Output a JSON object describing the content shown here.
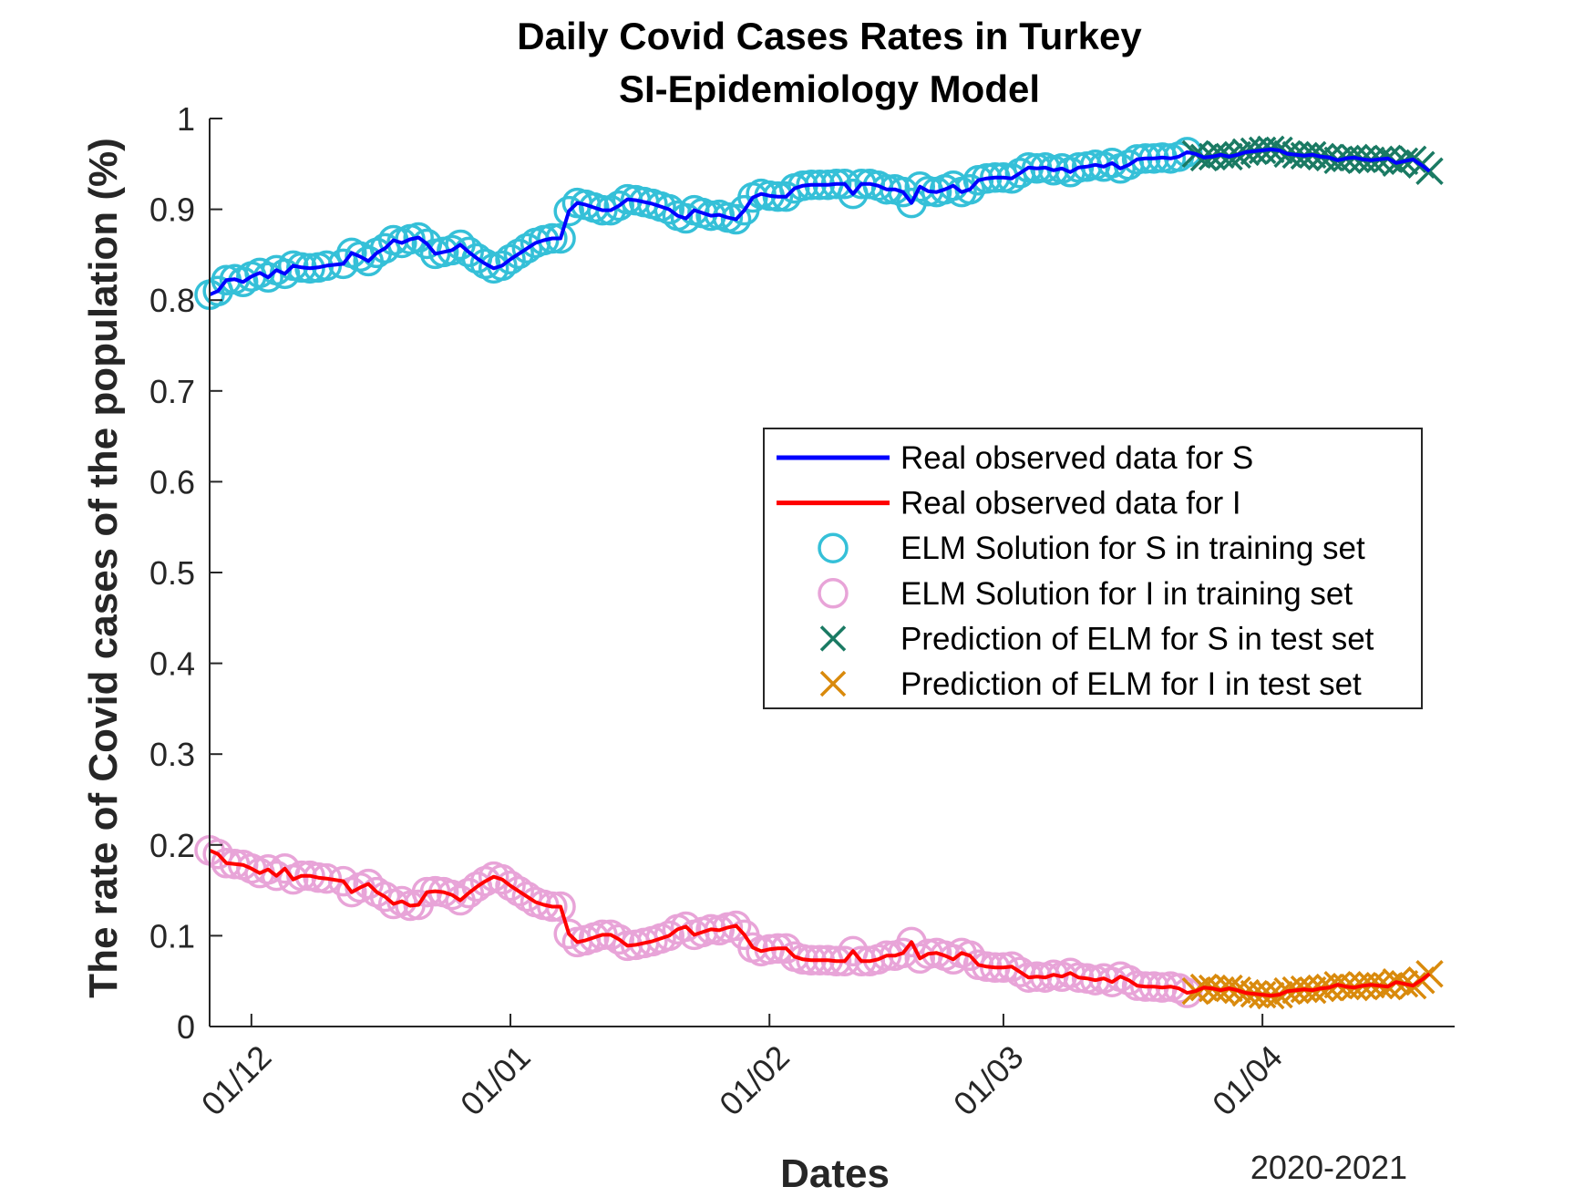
{
  "chart_data": {
    "type": "line",
    "title": [
      "Daily Covid Cases Rates in Turkey",
      "SI-Epidemiology Model"
    ],
    "xlabel": "Dates",
    "ylabel": "The rate of Covid cases of the population (%)",
    "x_secondary_label": "2020-2021",
    "ylim": [
      0,
      1
    ],
    "yticks": [
      "0",
      "0.1",
      "0.2",
      "0.3",
      "0.4",
      "0.5",
      "0.6",
      "0.7",
      "0.8",
      "0.9",
      "1"
    ],
    "xlim": [
      "2020-11-26",
      "2021-04-24"
    ],
    "xticks": [
      {
        "date": "2020-12-01",
        "label": "01/12"
      },
      {
        "date": "2021-01-01",
        "label": "01/01"
      },
      {
        "date": "2021-02-01",
        "label": "01/02"
      },
      {
        "date": "2021-03-01",
        "label": "01/03"
      },
      {
        "date": "2021-04-01",
        "label": "01/04"
      }
    ],
    "grid": false,
    "legend_position": "center-right",
    "colors": {
      "real_S": "#0000ff",
      "real_I": "#ff0000",
      "elm_S_train": "#35c0d8",
      "elm_I_train": "#e8a4d8",
      "pred_S_test": "#1a7a63",
      "pred_I_test": "#d98a0c"
    },
    "series": [
      {
        "name": "Real observed data for S",
        "style": "line",
        "color_key": "real_S"
      },
      {
        "name": "Real observed data for I",
        "style": "line",
        "color_key": "real_I"
      },
      {
        "name": "ELM Solution for S in training set",
        "style": "circle",
        "color_key": "elm_S_train"
      },
      {
        "name": "ELM Solution for I in training set",
        "style": "circle",
        "color_key": "elm_I_train"
      },
      {
        "name": "Prediction of ELM for S in test set",
        "style": "cross",
        "color_key": "pred_S_test"
      },
      {
        "name": "Prediction of ELM for I in test set",
        "style": "cross",
        "color_key": "pred_I_test"
      }
    ],
    "S_curve": [
      [
        "2020-11-26",
        0.806
      ],
      [
        "2020-11-27",
        0.81
      ],
      [
        "2020-11-28",
        0.822
      ],
      [
        "2020-11-29",
        0.823
      ],
      [
        "2020-11-30",
        0.82
      ],
      [
        "2020-12-01",
        0.826
      ],
      [
        "2020-12-02",
        0.83
      ],
      [
        "2020-12-03",
        0.825
      ],
      [
        "2020-12-04",
        0.833
      ],
      [
        "2020-12-05",
        0.829
      ],
      [
        "2020-12-06",
        0.838
      ],
      [
        "2020-12-07",
        0.836
      ],
      [
        "2020-12-08",
        0.835
      ],
      [
        "2020-12-09",
        0.836
      ],
      [
        "2020-12-10",
        0.838
      ],
      [
        "2020-12-12",
        0.84
      ],
      [
        "2020-12-13",
        0.852
      ],
      [
        "2020-12-14",
        0.848
      ],
      [
        "2020-12-15",
        0.843
      ],
      [
        "2020-12-16",
        0.852
      ],
      [
        "2020-12-17",
        0.857
      ],
      [
        "2020-12-18",
        0.866
      ],
      [
        "2020-12-19",
        0.863
      ],
      [
        "2020-12-20",
        0.867
      ],
      [
        "2020-12-21",
        0.869
      ],
      [
        "2020-12-22",
        0.862
      ],
      [
        "2020-12-23",
        0.851
      ],
      [
        "2020-12-24",
        0.853
      ],
      [
        "2020-12-25",
        0.855
      ],
      [
        "2020-12-26",
        0.861
      ],
      [
        "2020-12-27",
        0.853
      ],
      [
        "2020-12-28",
        0.846
      ],
      [
        "2020-12-29",
        0.84
      ],
      [
        "2020-12-30",
        0.835
      ],
      [
        "2020-12-31",
        0.838
      ],
      [
        "2021-01-01",
        0.845
      ],
      [
        "2021-01-02",
        0.851
      ],
      [
        "2021-01-03",
        0.857
      ],
      [
        "2021-01-04",
        0.863
      ],
      [
        "2021-01-05",
        0.866
      ],
      [
        "2021-01-06",
        0.868
      ],
      [
        "2021-01-07",
        0.868
      ],
      [
        "2021-01-08",
        0.898
      ],
      [
        "2021-01-09",
        0.907
      ],
      [
        "2021-01-10",
        0.905
      ],
      [
        "2021-01-11",
        0.902
      ],
      [
        "2021-01-12",
        0.899
      ],
      [
        "2021-01-13",
        0.899
      ],
      [
        "2021-01-14",
        0.904
      ],
      [
        "2021-01-15",
        0.911
      ],
      [
        "2021-01-16",
        0.91
      ],
      [
        "2021-01-17",
        0.908
      ],
      [
        "2021-01-18",
        0.906
      ],
      [
        "2021-01-19",
        0.903
      ],
      [
        "2021-01-20",
        0.9
      ],
      [
        "2021-01-21",
        0.893
      ],
      [
        "2021-01-22",
        0.89
      ],
      [
        "2021-01-23",
        0.899
      ],
      [
        "2021-01-24",
        0.896
      ],
      [
        "2021-01-25",
        0.893
      ],
      [
        "2021-01-26",
        0.894
      ],
      [
        "2021-01-27",
        0.891
      ],
      [
        "2021-01-28",
        0.889
      ],
      [
        "2021-01-29",
        0.899
      ],
      [
        "2021-01-30",
        0.913
      ],
      [
        "2021-01-31",
        0.917
      ],
      [
        "2021-02-01",
        0.915
      ],
      [
        "2021-02-02",
        0.914
      ],
      [
        "2021-02-03",
        0.914
      ],
      [
        "2021-02-04",
        0.923
      ],
      [
        "2021-02-05",
        0.926
      ],
      [
        "2021-02-06",
        0.927
      ],
      [
        "2021-02-07",
        0.927
      ],
      [
        "2021-02-08",
        0.927
      ],
      [
        "2021-02-09",
        0.928
      ],
      [
        "2021-02-10",
        0.928
      ],
      [
        "2021-02-11",
        0.917
      ],
      [
        "2021-02-12",
        0.928
      ],
      [
        "2021-02-13",
        0.928
      ],
      [
        "2021-02-14",
        0.926
      ],
      [
        "2021-02-15",
        0.922
      ],
      [
        "2021-02-16",
        0.922
      ],
      [
        "2021-02-17",
        0.919
      ],
      [
        "2021-02-18",
        0.907
      ],
      [
        "2021-02-19",
        0.925
      ],
      [
        "2021-02-20",
        0.92
      ],
      [
        "2021-02-21",
        0.919
      ],
      [
        "2021-02-22",
        0.922
      ],
      [
        "2021-02-23",
        0.926
      ],
      [
        "2021-02-24",
        0.919
      ],
      [
        "2021-02-25",
        0.922
      ],
      [
        "2021-02-26",
        0.932
      ],
      [
        "2021-02-27",
        0.934
      ],
      [
        "2021-02-28",
        0.935
      ],
      [
        "2021-03-01",
        0.935
      ],
      [
        "2021-03-02",
        0.934
      ],
      [
        "2021-03-03",
        0.94
      ],
      [
        "2021-03-04",
        0.946
      ],
      [
        "2021-03-05",
        0.945
      ],
      [
        "2021-03-06",
        0.946
      ],
      [
        "2021-03-07",
        0.943
      ],
      [
        "2021-03-08",
        0.945
      ],
      [
        "2021-03-09",
        0.941
      ],
      [
        "2021-03-10",
        0.946
      ],
      [
        "2021-03-11",
        0.947
      ],
      [
        "2021-03-12",
        0.949
      ],
      [
        "2021-03-13",
        0.947
      ],
      [
        "2021-03-14",
        0.951
      ],
      [
        "2021-03-15",
        0.945
      ],
      [
        "2021-03-16",
        0.949
      ],
      [
        "2021-03-17",
        0.955
      ],
      [
        "2021-03-18",
        0.956
      ],
      [
        "2021-03-19",
        0.956
      ],
      [
        "2021-03-20",
        0.957
      ],
      [
        "2021-03-21",
        0.956
      ],
      [
        "2021-03-22",
        0.958
      ],
      [
        "2021-03-23",
        0.963
      ],
      [
        "2021-03-24",
        0.961
      ],
      [
        "2021-03-25",
        0.957
      ],
      [
        "2021-03-26",
        0.958
      ],
      [
        "2021-03-27",
        0.96
      ],
      [
        "2021-03-28",
        0.958
      ],
      [
        "2021-03-29",
        0.96
      ],
      [
        "2021-03-30",
        0.963
      ],
      [
        "2021-03-31",
        0.964
      ],
      [
        "2021-04-01",
        0.965
      ],
      [
        "2021-04-02",
        0.966
      ],
      [
        "2021-04-03",
        0.965
      ],
      [
        "2021-04-04",
        0.961
      ],
      [
        "2021-04-05",
        0.96
      ],
      [
        "2021-04-06",
        0.959
      ],
      [
        "2021-04-07",
        0.96
      ],
      [
        "2021-04-08",
        0.958
      ],
      [
        "2021-04-09",
        0.957
      ],
      [
        "2021-04-10",
        0.954
      ],
      [
        "2021-04-11",
        0.956
      ],
      [
        "2021-04-12",
        0.957
      ],
      [
        "2021-04-13",
        0.955
      ],
      [
        "2021-04-14",
        0.954
      ],
      [
        "2021-04-15",
        0.955
      ],
      [
        "2021-04-16",
        0.956
      ],
      [
        "2021-04-17",
        0.951
      ],
      [
        "2021-04-18",
        0.953
      ],
      [
        "2021-04-19",
        0.955
      ],
      [
        "2021-04-20",
        0.949
      ],
      [
        "2021-04-21",
        0.942
      ]
    ],
    "I_curve": [
      [
        "2020-11-26",
        0.194
      ],
      [
        "2020-11-27",
        0.19
      ],
      [
        "2020-11-28",
        0.18
      ],
      [
        "2020-11-29",
        0.179
      ],
      [
        "2020-11-30",
        0.178
      ],
      [
        "2020-12-01",
        0.174
      ],
      [
        "2020-12-02",
        0.169
      ],
      [
        "2020-12-03",
        0.173
      ],
      [
        "2020-12-04",
        0.166
      ],
      [
        "2020-12-05",
        0.174
      ],
      [
        "2020-12-06",
        0.162
      ],
      [
        "2020-12-07",
        0.166
      ],
      [
        "2020-12-08",
        0.166
      ],
      [
        "2020-12-09",
        0.164
      ],
      [
        "2020-12-10",
        0.163
      ],
      [
        "2020-12-12",
        0.16
      ],
      [
        "2020-12-13",
        0.148
      ],
      [
        "2020-12-14",
        0.153
      ],
      [
        "2020-12-15",
        0.157
      ],
      [
        "2020-12-16",
        0.148
      ],
      [
        "2020-12-17",
        0.143
      ],
      [
        "2020-12-18",
        0.135
      ],
      [
        "2020-12-19",
        0.138
      ],
      [
        "2020-12-20",
        0.133
      ],
      [
        "2020-12-21",
        0.134
      ],
      [
        "2020-12-22",
        0.148
      ],
      [
        "2020-12-23",
        0.149
      ],
      [
        "2020-12-24",
        0.148
      ],
      [
        "2020-12-25",
        0.145
      ],
      [
        "2020-12-26",
        0.139
      ],
      [
        "2020-12-27",
        0.147
      ],
      [
        "2020-12-28",
        0.154
      ],
      [
        "2020-12-29",
        0.16
      ],
      [
        "2020-12-30",
        0.165
      ],
      [
        "2020-12-31",
        0.162
      ],
      [
        "2021-01-01",
        0.155
      ],
      [
        "2021-01-02",
        0.149
      ],
      [
        "2021-01-03",
        0.143
      ],
      [
        "2021-01-04",
        0.137
      ],
      [
        "2021-01-05",
        0.134
      ],
      [
        "2021-01-06",
        0.132
      ],
      [
        "2021-01-07",
        0.132
      ],
      [
        "2021-01-08",
        0.102
      ],
      [
        "2021-01-09",
        0.093
      ],
      [
        "2021-01-10",
        0.095
      ],
      [
        "2021-01-11",
        0.098
      ],
      [
        "2021-01-12",
        0.101
      ],
      [
        "2021-01-13",
        0.101
      ],
      [
        "2021-01-14",
        0.096
      ],
      [
        "2021-01-15",
        0.089
      ],
      [
        "2021-01-16",
        0.09
      ],
      [
        "2021-01-17",
        0.092
      ],
      [
        "2021-01-18",
        0.094
      ],
      [
        "2021-01-19",
        0.097
      ],
      [
        "2021-01-20",
        0.1
      ],
      [
        "2021-01-21",
        0.107
      ],
      [
        "2021-01-22",
        0.11
      ],
      [
        "2021-01-23",
        0.101
      ],
      [
        "2021-01-24",
        0.104
      ],
      [
        "2021-01-25",
        0.107
      ],
      [
        "2021-01-26",
        0.106
      ],
      [
        "2021-01-27",
        0.109
      ],
      [
        "2021-01-28",
        0.111
      ],
      [
        "2021-01-29",
        0.101
      ],
      [
        "2021-01-30",
        0.087
      ],
      [
        "2021-01-31",
        0.083
      ],
      [
        "2021-02-01",
        0.085
      ],
      [
        "2021-02-02",
        0.086
      ],
      [
        "2021-02-03",
        0.086
      ],
      [
        "2021-02-04",
        0.077
      ],
      [
        "2021-02-05",
        0.074
      ],
      [
        "2021-02-06",
        0.073
      ],
      [
        "2021-02-07",
        0.073
      ],
      [
        "2021-02-08",
        0.073
      ],
      [
        "2021-02-09",
        0.072
      ],
      [
        "2021-02-10",
        0.072
      ],
      [
        "2021-02-11",
        0.083
      ],
      [
        "2021-02-12",
        0.072
      ],
      [
        "2021-02-13",
        0.072
      ],
      [
        "2021-02-14",
        0.074
      ],
      [
        "2021-02-15",
        0.078
      ],
      [
        "2021-02-16",
        0.078
      ],
      [
        "2021-02-17",
        0.081
      ],
      [
        "2021-02-18",
        0.093
      ],
      [
        "2021-02-19",
        0.075
      ],
      [
        "2021-02-20",
        0.08
      ],
      [
        "2021-02-21",
        0.081
      ],
      [
        "2021-02-22",
        0.078
      ],
      [
        "2021-02-23",
        0.074
      ],
      [
        "2021-02-24",
        0.081
      ],
      [
        "2021-02-25",
        0.078
      ],
      [
        "2021-02-26",
        0.068
      ],
      [
        "2021-02-27",
        0.066
      ],
      [
        "2021-02-28",
        0.065
      ],
      [
        "2021-03-01",
        0.065
      ],
      [
        "2021-03-02",
        0.066
      ],
      [
        "2021-03-03",
        0.06
      ],
      [
        "2021-03-04",
        0.054
      ],
      [
        "2021-03-05",
        0.055
      ],
      [
        "2021-03-06",
        0.054
      ],
      [
        "2021-03-07",
        0.057
      ],
      [
        "2021-03-08",
        0.055
      ],
      [
        "2021-03-09",
        0.059
      ],
      [
        "2021-03-10",
        0.054
      ],
      [
        "2021-03-11",
        0.053
      ],
      [
        "2021-03-12",
        0.051
      ],
      [
        "2021-03-13",
        0.053
      ],
      [
        "2021-03-14",
        0.049
      ],
      [
        "2021-03-15",
        0.055
      ],
      [
        "2021-03-16",
        0.051
      ],
      [
        "2021-03-17",
        0.045
      ],
      [
        "2021-03-18",
        0.044
      ],
      [
        "2021-03-19",
        0.044
      ],
      [
        "2021-03-20",
        0.043
      ],
      [
        "2021-03-21",
        0.044
      ],
      [
        "2021-03-22",
        0.042
      ],
      [
        "2021-03-23",
        0.037
      ],
      [
        "2021-03-24",
        0.039
      ],
      [
        "2021-03-25",
        0.043
      ],
      [
        "2021-03-26",
        0.042
      ],
      [
        "2021-03-27",
        0.04
      ],
      [
        "2021-03-28",
        0.042
      ],
      [
        "2021-03-29",
        0.04
      ],
      [
        "2021-03-30",
        0.037
      ],
      [
        "2021-03-31",
        0.036
      ],
      [
        "2021-04-01",
        0.035
      ],
      [
        "2021-04-02",
        0.034
      ],
      [
        "2021-04-03",
        0.035
      ],
      [
        "2021-04-04",
        0.039
      ],
      [
        "2021-04-05",
        0.04
      ],
      [
        "2021-04-06",
        0.041
      ],
      [
        "2021-04-07",
        0.04
      ],
      [
        "2021-04-08",
        0.042
      ],
      [
        "2021-04-09",
        0.043
      ],
      [
        "2021-04-10",
        0.046
      ],
      [
        "2021-04-11",
        0.044
      ],
      [
        "2021-04-12",
        0.043
      ],
      [
        "2021-04-13",
        0.045
      ],
      [
        "2021-04-14",
        0.046
      ],
      [
        "2021-04-15",
        0.045
      ],
      [
        "2021-04-16",
        0.044
      ],
      [
        "2021-04-17",
        0.049
      ],
      [
        "2021-04-18",
        0.047
      ],
      [
        "2021-04-19",
        0.045
      ],
      [
        "2021-04-20",
        0.051
      ],
      [
        "2021-04-21",
        0.058
      ]
    ],
    "train_end_date": "2021-03-23"
  }
}
